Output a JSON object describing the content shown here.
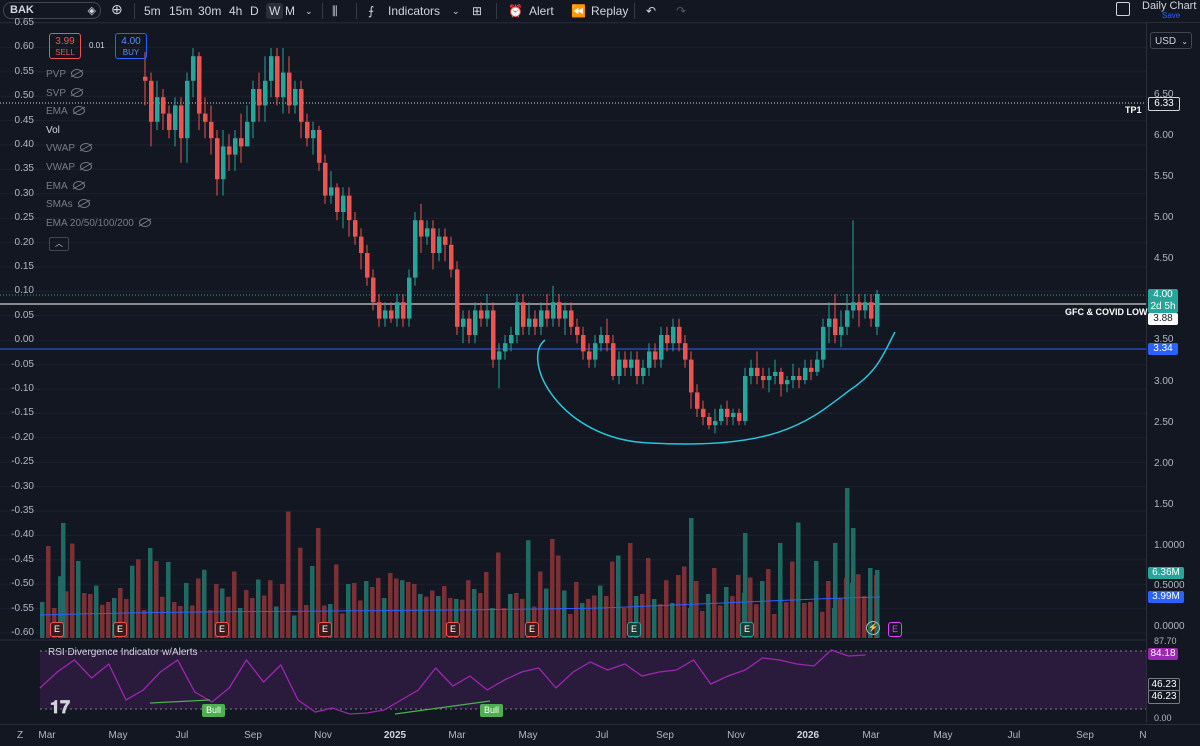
{
  "toolbar": {
    "symbol": "BAK",
    "timeframes": [
      "5m",
      "15m",
      "30m",
      "4h",
      "D",
      "W",
      "M"
    ],
    "active_timeframe": "W",
    "indicators_label": "Indicators",
    "alert_label": "Alert",
    "replay_label": "Replay",
    "layout_name": "Daily Chart",
    "save_label": "Save"
  },
  "trade": {
    "sell_price": "3.99",
    "sell_label": "SELL",
    "spread": "0.01",
    "buy_price": "4.00",
    "buy_label": "BUY"
  },
  "legend": [
    "PVP",
    "SVP",
    "EMA",
    "Vol",
    "VWAP",
    "VWAP",
    "EMA",
    "SMAs",
    "EMA 20/50/100/200"
  ],
  "currency": "USD",
  "left_axis": [
    "0.65",
    "0.60",
    "0.55",
    "0.50",
    "0.45",
    "0.40",
    "0.35",
    "0.30",
    "0.25",
    "0.20",
    "0.15",
    "0.10",
    "0.05",
    "0.00",
    "-0.05",
    "-0.10",
    "-0.15",
    "-0.20",
    "-0.25",
    "-0.30",
    "-0.35",
    "-0.40",
    "-0.45",
    "-0.50",
    "-0.55",
    "-0.60"
  ],
  "right_axis": [
    "6.50",
    "6.00",
    "5.50",
    "5.00",
    "4.50",
    "3.50",
    "3.00",
    "2.50",
    "2.00",
    "1.50",
    "1.0000",
    "0.5000",
    "0.0000"
  ],
  "price_labels": {
    "tp1": "TP1",
    "tp1_value": "6.33",
    "gfc": "GFC & COVID LOW",
    "gfc_value": "3.88",
    "blue_value": "3.34",
    "last": "4.00",
    "countdown": "2d 5h",
    "vol_value": "6.36M",
    "vol_ma_value": "3.99M"
  },
  "rsi": {
    "title": "RSI Divergence Indicator w/Alerts",
    "value": "84.18",
    "val2": "46.23",
    "val3": "46.23",
    "top_tick": "87.70",
    "bottom_tick": "0.00",
    "bull_label": "Bull"
  },
  "earnings_badge": "E",
  "x_axis": [
    {
      "label": "Z",
      "x": 20
    },
    {
      "label": "Mar",
      "x": 47
    },
    {
      "label": "May",
      "x": 118
    },
    {
      "label": "Jul",
      "x": 182
    },
    {
      "label": "Sep",
      "x": 253
    },
    {
      "label": "Nov",
      "x": 323
    },
    {
      "label": "2025",
      "x": 395
    },
    {
      "label": "Mar",
      "x": 457
    },
    {
      "label": "May",
      "x": 528
    },
    {
      "label": "Jul",
      "x": 602
    },
    {
      "label": "Sep",
      "x": 665
    },
    {
      "label": "Nov",
      "x": 736
    },
    {
      "label": "2026",
      "x": 808
    },
    {
      "label": "Mar",
      "x": 871
    },
    {
      "label": "May",
      "x": 943
    },
    {
      "label": "Jul",
      "x": 1014
    },
    {
      "label": "Sep",
      "x": 1085
    },
    {
      "label": "N",
      "x": 1143
    }
  ],
  "colors": {
    "up": "#26a69a",
    "down": "#ef5350",
    "background": "#131722",
    "rsi": "#9c27b0",
    "cup": "#26c6da",
    "blue_line": "#2962ff"
  }
}
